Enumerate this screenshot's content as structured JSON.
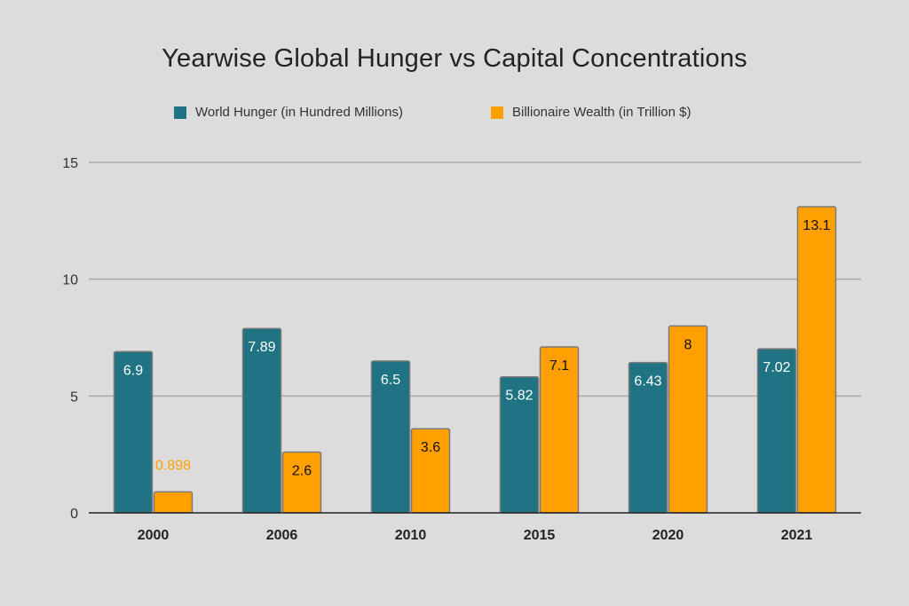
{
  "chart_data": {
    "type": "bar",
    "title": "Yearwise Global Hunger vs Capital Concentrations",
    "categories": [
      "2000",
      "2006",
      "2010",
      "2015",
      "2020",
      "2021"
    ],
    "series": [
      {
        "name": "World Hunger (in Hundred Millions)",
        "color": "#1f7383",
        "values": [
          6.9,
          7.89,
          6.5,
          5.82,
          6.43,
          7.02
        ],
        "labels": [
          "6.9",
          "7.89",
          "6.5",
          "5.82",
          "6.43",
          "7.02"
        ]
      },
      {
        "name": "Billionaire Wealth (in Trillion $)",
        "color": "#ff9f00",
        "values": [
          0.898,
          2.6,
          3.6,
          7.1,
          8,
          13.1
        ],
        "labels": [
          "0.898",
          "2.6",
          "3.6",
          "7.1",
          "8",
          "13.1"
        ]
      }
    ],
    "ylim": [
      0,
      15
    ],
    "yticks": [
      "0",
      "5",
      "10",
      "15"
    ],
    "xlabel": "",
    "ylabel": "",
    "grid": true,
    "legend_position": "top"
  }
}
